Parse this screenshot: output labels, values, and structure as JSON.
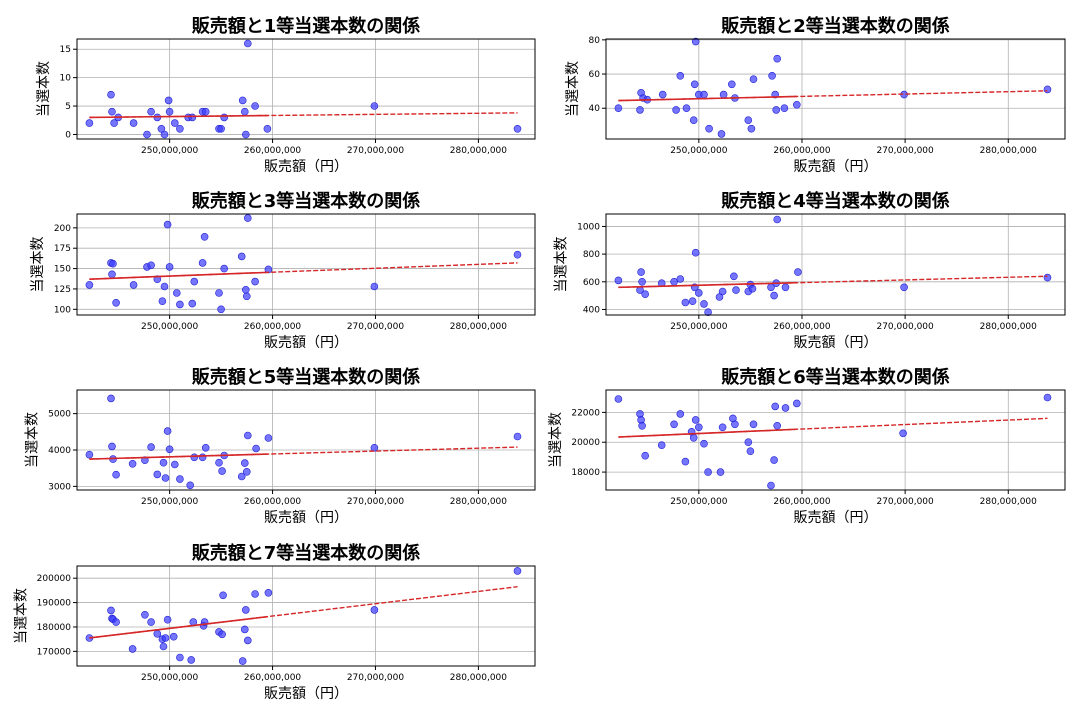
{
  "chart_data": [
    {
      "type": "scatter",
      "title": "販売額と1等当選本数の関係",
      "xlabel": "販売額（円）",
      "ylabel": "当選本数",
      "xlim": [
        241000000,
        285500000
      ],
      "ylim": [
        -0.8,
        16.8
      ],
      "xticks": [
        250000000,
        260000000,
        270000000,
        280000000
      ],
      "xtick_labels": [
        "250,000,000",
        "260,000,000",
        "270,000,000",
        "280,000,000"
      ],
      "yticks": [
        0,
        5,
        10,
        15
      ],
      "ytick_labels": [
        "0",
        "5",
        "10",
        "15"
      ],
      "grid": true,
      "points": [
        [
          242200000,
          2
        ],
        [
          244300000,
          7
        ],
        [
          244400000,
          4
        ],
        [
          244600000,
          2
        ],
        [
          245000000,
          3
        ],
        [
          246500000,
          2
        ],
        [
          247800000,
          0
        ],
        [
          248200000,
          4
        ],
        [
          248800000,
          3
        ],
        [
          249200000,
          1
        ],
        [
          249500000,
          0
        ],
        [
          249900000,
          6
        ],
        [
          250000000,
          4
        ],
        [
          250500000,
          2
        ],
        [
          251000000,
          1
        ],
        [
          251800000,
          3
        ],
        [
          252200000,
          3
        ],
        [
          253200000,
          4
        ],
        [
          253500000,
          4
        ],
        [
          254800000,
          1
        ],
        [
          255000000,
          1
        ],
        [
          255300000,
          3
        ],
        [
          257100000,
          6
        ],
        [
          257300000,
          4
        ],
        [
          257400000,
          0
        ],
        [
          257600000,
          16
        ],
        [
          258300000,
          5
        ],
        [
          259500000,
          1
        ],
        [
          269900000,
          5
        ],
        [
          283800000,
          1
        ]
      ],
      "trend": {
        "x": [
          242200000,
          283800000
        ],
        "y": [
          3.0,
          3.8
        ]
      },
      "colors": {
        "points": "#3b3bff",
        "trend": "#d62728"
      }
    },
    {
      "type": "scatter",
      "title": "販売額と2等当選本数の関係",
      "xlabel": "販売額（円）",
      "ylabel": "当選本数",
      "xlim": [
        241000000,
        285500000
      ],
      "ylim": [
        22,
        80.5
      ],
      "xticks": [
        250000000,
        260000000,
        270000000,
        280000000
      ],
      "xtick_labels": [
        "250,000,000",
        "260,000,000",
        "270,000,000",
        "280,000,000"
      ],
      "yticks": [
        40,
        60,
        80
      ],
      "ytick_labels": [
        "40",
        "60",
        "80"
      ],
      "grid": true,
      "points": [
        [
          242200000,
          40
        ],
        [
          244300000,
          39
        ],
        [
          244400000,
          49
        ],
        [
          244600000,
          46
        ],
        [
          245000000,
          45
        ],
        [
          246500000,
          48
        ],
        [
          247800000,
          39
        ],
        [
          248200000,
          59
        ],
        [
          248800000,
          40
        ],
        [
          249500000,
          33
        ],
        [
          249600000,
          54
        ],
        [
          249700000,
          79
        ],
        [
          250000000,
          48
        ],
        [
          250500000,
          48
        ],
        [
          251000000,
          28
        ],
        [
          252200000,
          25
        ],
        [
          252400000,
          48
        ],
        [
          253200000,
          54
        ],
        [
          253500000,
          46
        ],
        [
          254800000,
          33
        ],
        [
          255100000,
          28
        ],
        [
          255300000,
          57
        ],
        [
          257100000,
          59
        ],
        [
          257400000,
          48
        ],
        [
          257500000,
          39
        ],
        [
          257600000,
          69
        ],
        [
          258300000,
          40
        ],
        [
          259500000,
          42
        ],
        [
          269900000,
          48
        ],
        [
          283800000,
          51
        ]
      ],
      "trend": {
        "x": [
          242200000,
          283800000
        ],
        "y": [
          44.5,
          50.2
        ]
      },
      "colors": {
        "points": "#3b3bff",
        "trend": "#d62728"
      }
    },
    {
      "type": "scatter",
      "title": "販売額と3等当選本数の関係",
      "xlabel": "販売額（円）",
      "ylabel": "当選本数",
      "xlim": [
        241000000,
        285500000
      ],
      "ylim": [
        93,
        217
      ],
      "xticks": [
        250000000,
        260000000,
        270000000,
        280000000
      ],
      "xtick_labels": [
        "250,000,000",
        "260,000,000",
        "270,000,000",
        "280,000,000"
      ],
      "yticks": [
        100,
        125,
        150,
        175,
        200
      ],
      "ytick_labels": [
        "100",
        "125",
        "150",
        "175",
        "200"
      ],
      "grid": true,
      "points": [
        [
          242200000,
          130
        ],
        [
          244300000,
          157
        ],
        [
          244400000,
          143
        ],
        [
          244500000,
          156
        ],
        [
          244800000,
          108
        ],
        [
          246500000,
          130
        ],
        [
          247800000,
          152
        ],
        [
          248200000,
          154
        ],
        [
          248800000,
          137
        ],
        [
          249300000,
          110
        ],
        [
          249500000,
          128
        ],
        [
          249800000,
          204
        ],
        [
          250000000,
          152
        ],
        [
          250700000,
          120
        ],
        [
          251000000,
          106
        ],
        [
          252200000,
          107
        ],
        [
          252400000,
          134
        ],
        [
          253200000,
          157
        ],
        [
          253400000,
          189
        ],
        [
          254800000,
          120
        ],
        [
          255000000,
          100
        ],
        [
          255300000,
          150
        ],
        [
          257000000,
          165
        ],
        [
          257400000,
          124
        ],
        [
          257500000,
          116
        ],
        [
          257600000,
          212
        ],
        [
          258300000,
          134
        ],
        [
          259600000,
          149
        ],
        [
          269900000,
          128
        ],
        [
          283800000,
          167
        ]
      ],
      "trend": {
        "x": [
          242200000,
          283800000
        ],
        "y": [
          137,
          157
        ]
      },
      "colors": {
        "points": "#3b3bff",
        "trend": "#d62728"
      }
    },
    {
      "type": "scatter",
      "title": "販売額と4等当選本数の関係",
      "xlabel": "販売額（円）",
      "ylabel": "当選本数",
      "xlim": [
        241000000,
        285500000
      ],
      "ylim": [
        360,
        1090
      ],
      "xticks": [
        250000000,
        260000000,
        270000000,
        280000000
      ],
      "xtick_labels": [
        "250,000,000",
        "260,000,000",
        "270,000,000",
        "280,000,000"
      ],
      "yticks": [
        400,
        600,
        800,
        1000
      ],
      "ytick_labels": [
        "400",
        "600",
        "800",
        "1000"
      ],
      "grid": true,
      "points": [
        [
          242200000,
          610
        ],
        [
          244300000,
          540
        ],
        [
          244400000,
          670
        ],
        [
          244500000,
          600
        ],
        [
          244800000,
          510
        ],
        [
          246400000,
          590
        ],
        [
          247600000,
          600
        ],
        [
          248200000,
          620
        ],
        [
          248700000,
          450
        ],
        [
          249400000,
          460
        ],
        [
          249600000,
          560
        ],
        [
          249700000,
          810
        ],
        [
          250000000,
          520
        ],
        [
          250500000,
          440
        ],
        [
          250900000,
          380
        ],
        [
          252000000,
          490
        ],
        [
          252300000,
          530
        ],
        [
          253400000,
          640
        ],
        [
          253600000,
          540
        ],
        [
          254800000,
          530
        ],
        [
          255000000,
          580
        ],
        [
          255200000,
          550
        ],
        [
          257000000,
          560
        ],
        [
          257300000,
          500
        ],
        [
          257500000,
          590
        ],
        [
          257600000,
          1050
        ],
        [
          258400000,
          560
        ],
        [
          259600000,
          670
        ],
        [
          269900000,
          560
        ],
        [
          283800000,
          630
        ]
      ],
      "trend": {
        "x": [
          242200000,
          283800000
        ],
        "y": [
          560,
          640
        ]
      },
      "colors": {
        "points": "#3b3bff",
        "trend": "#d62728"
      }
    },
    {
      "type": "scatter",
      "title": "販売額と5等当選本数の関係",
      "xlabel": "販売額（円）",
      "ylabel": "当選本数",
      "xlim": [
        241000000,
        285500000
      ],
      "ylim": [
        2900,
        5650
      ],
      "xticks": [
        250000000,
        260000000,
        270000000,
        280000000
      ],
      "xtick_labels": [
        "250,000,000",
        "260,000,000",
        "270,000,000",
        "280,000,000"
      ],
      "yticks": [
        3000,
        4000,
        5000
      ],
      "ytick_labels": [
        "3000",
        "4000",
        "5000"
      ],
      "grid": true,
      "points": [
        [
          242200000,
          3870
        ],
        [
          244300000,
          5420
        ],
        [
          244400000,
          4100
        ],
        [
          244500000,
          3750
        ],
        [
          244800000,
          3320
        ],
        [
          246400000,
          3620
        ],
        [
          247600000,
          3720
        ],
        [
          248200000,
          4080
        ],
        [
          248800000,
          3330
        ],
        [
          249400000,
          3650
        ],
        [
          249600000,
          3230
        ],
        [
          249800000,
          4520
        ],
        [
          250000000,
          4020
        ],
        [
          250500000,
          3600
        ],
        [
          251000000,
          3200
        ],
        [
          252000000,
          3030
        ],
        [
          252400000,
          3800
        ],
        [
          253200000,
          3800
        ],
        [
          253500000,
          4060
        ],
        [
          254800000,
          3650
        ],
        [
          255100000,
          3420
        ],
        [
          255300000,
          3850
        ],
        [
          257000000,
          3270
        ],
        [
          257300000,
          3640
        ],
        [
          257500000,
          3400
        ],
        [
          257600000,
          4400
        ],
        [
          258400000,
          4040
        ],
        [
          259600000,
          4330
        ],
        [
          269900000,
          4060
        ],
        [
          283800000,
          4370
        ]
      ],
      "trend": {
        "x": [
          242200000,
          283800000
        ],
        "y": [
          3750,
          4080
        ]
      },
      "colors": {
        "points": "#3b3bff",
        "trend": "#d62728"
      }
    },
    {
      "type": "scatter",
      "title": "販売額と6等当選本数の関係",
      "xlabel": "販売額（円）",
      "ylabel": "当選本数",
      "xlim": [
        241000000,
        285500000
      ],
      "ylim": [
        16800,
        23500
      ],
      "xticks": [
        250000000,
        260000000,
        270000000,
        280000000
      ],
      "xtick_labels": [
        "250,000,000",
        "260,000,000",
        "270,000,000",
        "280,000,000"
      ],
      "yticks": [
        18000,
        20000,
        22000
      ],
      "ytick_labels": [
        "18000",
        "20000",
        "22000"
      ],
      "grid": true,
      "points": [
        [
          242200000,
          22900
        ],
        [
          244300000,
          21900
        ],
        [
          244400000,
          21500
        ],
        [
          244500000,
          21100
        ],
        [
          244800000,
          19100
        ],
        [
          246400000,
          19800
        ],
        [
          247600000,
          21200
        ],
        [
          248200000,
          21900
        ],
        [
          248700000,
          18700
        ],
        [
          249300000,
          20700
        ],
        [
          249500000,
          20300
        ],
        [
          249700000,
          21500
        ],
        [
          250000000,
          21000
        ],
        [
          250500000,
          19900
        ],
        [
          250900000,
          18000
        ],
        [
          252100000,
          18000
        ],
        [
          252300000,
          21000
        ],
        [
          253300000,
          21600
        ],
        [
          253500000,
          21200
        ],
        [
          254800000,
          20000
        ],
        [
          255000000,
          19400
        ],
        [
          255300000,
          21200
        ],
        [
          257000000,
          17100
        ],
        [
          257300000,
          18800
        ],
        [
          257400000,
          22400
        ],
        [
          257600000,
          21100
        ],
        [
          258400000,
          22300
        ],
        [
          259500000,
          22600
        ],
        [
          269800000,
          20600
        ],
        [
          283800000,
          23000
        ]
      ],
      "trend": {
        "x": [
          242200000,
          283800000
        ],
        "y": [
          20350,
          21600
        ]
      },
      "colors": {
        "points": "#3b3bff",
        "trend": "#d62728"
      }
    },
    {
      "type": "scatter",
      "title": "販売額と7等当選本数の関係",
      "xlabel": "販売額（円）",
      "ylabel": "当選本数",
      "xlim": [
        241000000,
        285500000
      ],
      "ylim": [
        164000,
        205000
      ],
      "xticks": [
        250000000,
        260000000,
        270000000,
        280000000
      ],
      "xtick_labels": [
        "250,000,000",
        "260,000,000",
        "270,000,000",
        "280,000,000"
      ],
      "yticks": [
        170000,
        180000,
        190000,
        200000
      ],
      "ytick_labels": [
        "170000",
        "180000",
        "190000",
        "200000"
      ],
      "grid": true,
      "points": [
        [
          242200000,
          175500
        ],
        [
          244300000,
          186800
        ],
        [
          244400000,
          183500
        ],
        [
          244500000,
          183200
        ],
        [
          244800000,
          182000
        ],
        [
          246400000,
          171000
        ],
        [
          247600000,
          185000
        ],
        [
          248200000,
          182000
        ],
        [
          248800000,
          177200
        ],
        [
          249300000,
          175000
        ],
        [
          249400000,
          172000
        ],
        [
          249600000,
          175500
        ],
        [
          249800000,
          183000
        ],
        [
          250400000,
          176000
        ],
        [
          251000000,
          167500
        ],
        [
          252100000,
          166500
        ],
        [
          252300000,
          182000
        ],
        [
          253300000,
          180500
        ],
        [
          253400000,
          182000
        ],
        [
          254800000,
          178000
        ],
        [
          255100000,
          177000
        ],
        [
          255200000,
          193000
        ],
        [
          257100000,
          166000
        ],
        [
          257300000,
          179000
        ],
        [
          257400000,
          187000
        ],
        [
          257600000,
          174500
        ],
        [
          258300000,
          193500
        ],
        [
          259600000,
          194000
        ],
        [
          269900000,
          187000
        ],
        [
          283800000,
          203000
        ]
      ],
      "trend": {
        "x": [
          242200000,
          283800000
        ],
        "y": [
          175500,
          196500
        ]
      },
      "colors": {
        "points": "#3b3bff",
        "trend": "#d62728"
      }
    }
  ]
}
